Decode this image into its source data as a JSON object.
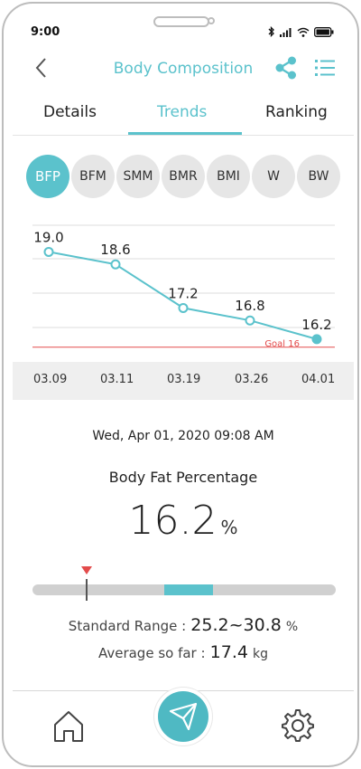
{
  "status_bar": {
    "time": "9:00"
  },
  "header": {
    "title": "Body Composition"
  },
  "tabs": [
    {
      "label": "Details",
      "active": false
    },
    {
      "label": "Trends",
      "active": true
    },
    {
      "label": "Ranking",
      "active": false
    }
  ],
  "metric_chips": [
    {
      "label": "BFP",
      "active": true
    },
    {
      "label": "BFM",
      "active": false
    },
    {
      "label": "SMM",
      "active": false
    },
    {
      "label": "BMR",
      "active": false
    },
    {
      "label": "BMI",
      "active": false
    },
    {
      "label": "W",
      "active": false
    },
    {
      "label": "BW",
      "active": false
    }
  ],
  "chart_data": {
    "type": "line",
    "x": [
      "03.09",
      "03.11",
      "03.19",
      "03.26",
      "04.01"
    ],
    "series": [
      {
        "values": [
          19.0,
          18.6,
          17.2,
          16.8,
          16.2
        ]
      }
    ],
    "value_labels": [
      "19.0",
      "18.6",
      "17.2",
      "16.8",
      "16.2"
    ],
    "goal": {
      "value": 16,
      "label": "Goal 16"
    },
    "ylim": [
      15.5,
      20.0
    ],
    "grid": true,
    "selected_index": 4,
    "line_color": "#5bc2cc",
    "goal_color": "#e34b4b"
  },
  "detail": {
    "timestamp": "Wed, Apr 01, 2020 09:08 AM",
    "metric_name": "Body Fat Percentage",
    "value": "16.2",
    "unit": "%",
    "marker_value": 16.2,
    "range_min": 10.0,
    "range_max": 45.0,
    "standard_low": 25.2,
    "standard_high": 30.8
  },
  "stats": {
    "standard_range_label": "Standard Range :",
    "standard_range_value": "25.2~30.8",
    "standard_range_unit": "%",
    "average_label": "Average so far :",
    "average_value": "17.4",
    "average_unit": "kg"
  },
  "colors": {
    "accent": "#5bc2cc",
    "goal": "#e34b4b",
    "chip_bg": "#e6e6e6"
  },
  "icons": {
    "back": "chevron-left-icon",
    "share": "share-icon",
    "menu": "list-menu-icon",
    "home": "home-icon",
    "send": "paper-plane-icon",
    "settings": "gear-icon"
  }
}
